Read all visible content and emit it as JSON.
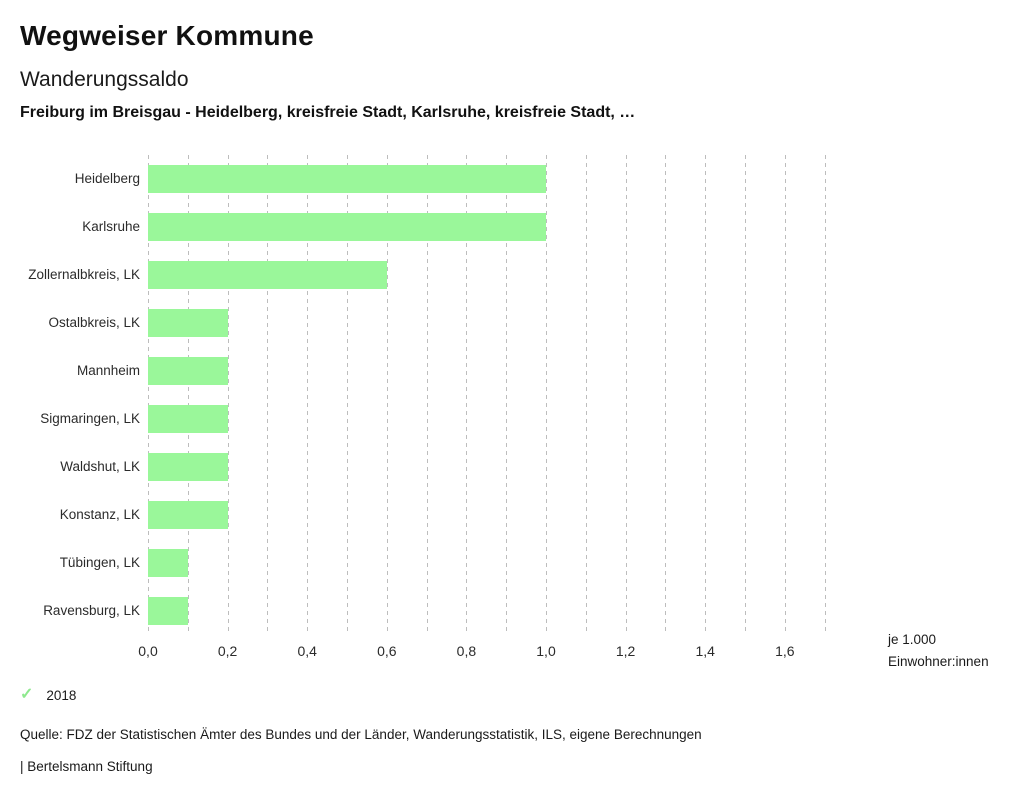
{
  "header": {
    "title": "Wegweiser Kommune",
    "subtitle": "Wanderungssaldo",
    "comparison_line": "Freiburg im Breisgau - Heidelberg, kreisfreie Stadt, Karlsruhe, kreisfreie Stadt, …"
  },
  "chart_data": {
    "type": "bar",
    "orientation": "horizontal",
    "title": "Wanderungssaldo",
    "categories": [
      "Heidelberg",
      "Karlsruhe",
      "Zollernalbkreis, LK",
      "Ostalbkreis, LK",
      "Mannheim",
      "Sigmaringen, LK",
      "Waldshut, LK",
      "Konstanz, LK",
      "Tübingen, LK",
      "Ravensburg, LK"
    ],
    "values": [
      1.0,
      1.0,
      0.6,
      0.2,
      0.2,
      0.2,
      0.2,
      0.2,
      0.1,
      0.1
    ],
    "xlim": [
      0,
      1.7
    ],
    "grid_step": 0.1,
    "grid_on": true,
    "xticks": [
      {
        "value": 0.0,
        "label": "0,0"
      },
      {
        "value": 0.2,
        "label": "0,2"
      },
      {
        "value": 0.4,
        "label": "0,4"
      },
      {
        "value": 0.6,
        "label": "0,6"
      },
      {
        "value": 0.8,
        "label": "0,8"
      },
      {
        "value": 1.0,
        "label": "1,0"
      },
      {
        "value": 1.2,
        "label": "1,2"
      },
      {
        "value": 1.4,
        "label": "1,4"
      },
      {
        "value": 1.6,
        "label": "1,6"
      }
    ],
    "xlabel_lines": [
      "je 1.000",
      "Einwohner:innen"
    ],
    "bar_color": "#9af79a",
    "gridline_color": "#bdbdbd",
    "legend_position": "bottom-left"
  },
  "legend": {
    "check_icon": "✓",
    "check_color": "#8ee98e",
    "year_label": "2018"
  },
  "footer": {
    "source": "Quelle: FDZ der Statistischen Ämter des Bundes und der Länder, Wanderungsstatistik, ILS, eigene Berechnungen",
    "attribution": "| Bertelsmann Stiftung"
  }
}
